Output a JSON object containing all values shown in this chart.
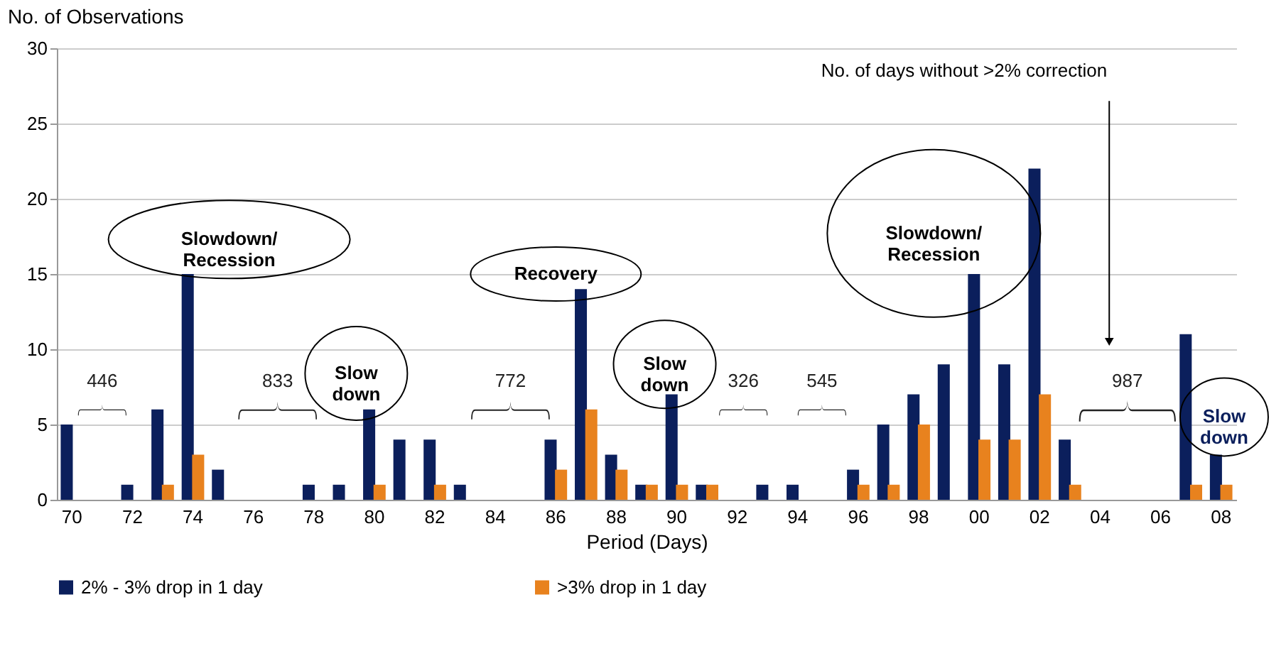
{
  "chart_data": {
    "type": "bar",
    "ylabel": "No. of Observations",
    "xlabel": "Period (Days)",
    "categories": [
      "70",
      null,
      "72",
      null,
      "74",
      null,
      "76",
      null,
      "78",
      null,
      "80",
      null,
      "82",
      null,
      "84",
      null,
      "86",
      null,
      "88",
      null,
      "90",
      null,
      "92",
      null,
      "94",
      null,
      "96",
      null,
      "98",
      null,
      "00",
      null,
      "02",
      null,
      "04",
      null,
      "06",
      null,
      "08"
    ],
    "series": [
      {
        "name": "2% - 3% drop in 1 day",
        "color": "#0b1f5c",
        "values": [
          5,
          0,
          1,
          6,
          15,
          2,
          0,
          0,
          1,
          1,
          6,
          4,
          4,
          1,
          0,
          0,
          4,
          14,
          3,
          1,
          7,
          1,
          0,
          1,
          1,
          0,
          2,
          5,
          7,
          9,
          15,
          9,
          22,
          4,
          0,
          0,
          0,
          11,
          3
        ]
      },
      {
        "name": ">3% drop in 1 day",
        "color": "#e8821e",
        "values": [
          0,
          0,
          0,
          1,
          3,
          0,
          0,
          0,
          0,
          0,
          1,
          0,
          1,
          0,
          0,
          0,
          2,
          6,
          2,
          1,
          1,
          1,
          0,
          0,
          0,
          0,
          1,
          1,
          5,
          0,
          4,
          4,
          7,
          1,
          0,
          0,
          0,
          1,
          1
        ]
      }
    ],
    "ylim": [
      0,
      30
    ],
    "yticks": [
      0,
      5,
      10,
      15,
      20,
      25,
      30
    ],
    "grid": "y",
    "legend": "bottom",
    "annotations": [
      "Slowdown/\nRecession",
      "446",
      "833",
      "Slow\ndown",
      "772",
      "Recovery",
      "Slow\ndown",
      "326",
      "545",
      "Slowdown/\nRecession",
      "987",
      "Slow\ndown",
      "No. of days without >2% correction"
    ]
  }
}
